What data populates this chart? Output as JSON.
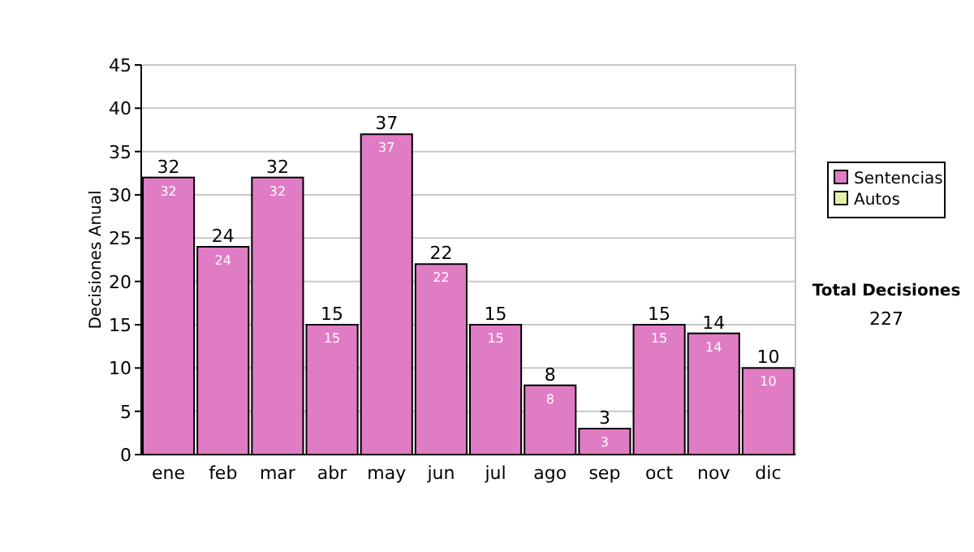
{
  "chart_data": {
    "type": "bar",
    "ylabel": "Decisiones Anual",
    "categories": [
      "ene",
      "feb",
      "mar",
      "abr",
      "may",
      "jun",
      "jul",
      "ago",
      "sep",
      "oct",
      "nov",
      "dic"
    ],
    "series": [
      {
        "name": "Sentencias",
        "color": "#e07cc4",
        "values": [
          32,
          24,
          32,
          15,
          37,
          22,
          15,
          8,
          3,
          15,
          14,
          10
        ]
      },
      {
        "name": "Autos",
        "color": "#e8f0a8",
        "values": [
          null,
          null,
          null,
          null,
          null,
          null,
          null,
          null,
          null,
          null,
          null,
          null
        ]
      }
    ],
    "ylim": [
      0,
      45
    ],
    "yticks": [
      0,
      5,
      10,
      15,
      20,
      25,
      30,
      35,
      40,
      45
    ],
    "grid": "y",
    "legend": "right",
    "data_labels": true,
    "annotations": [
      "Total Decisiones",
      "227",
      {
        "text": "32",
        "x": "ene",
        "y": 32
      },
      {
        "text": "24",
        "x": "feb",
        "y": 24
      },
      {
        "text": "32",
        "x": "mar",
        "y": 32
      },
      {
        "text": "15",
        "x": "abr",
        "y": 15
      },
      {
        "text": "37",
        "x": "may",
        "y": 37
      },
      {
        "text": "22",
        "x": "jun",
        "y": 22
      },
      {
        "text": "15",
        "x": "jul",
        "y": 15
      },
      {
        "text": "8",
        "x": "ago",
        "y": 8
      },
      {
        "text": "3",
        "x": "sep",
        "y": 3
      },
      {
        "text": "15",
        "x": "oct",
        "y": 15
      },
      {
        "text": "14",
        "x": "nov",
        "y": 14
      },
      {
        "text": "10",
        "x": "dic",
        "y": 10
      }
    ]
  }
}
